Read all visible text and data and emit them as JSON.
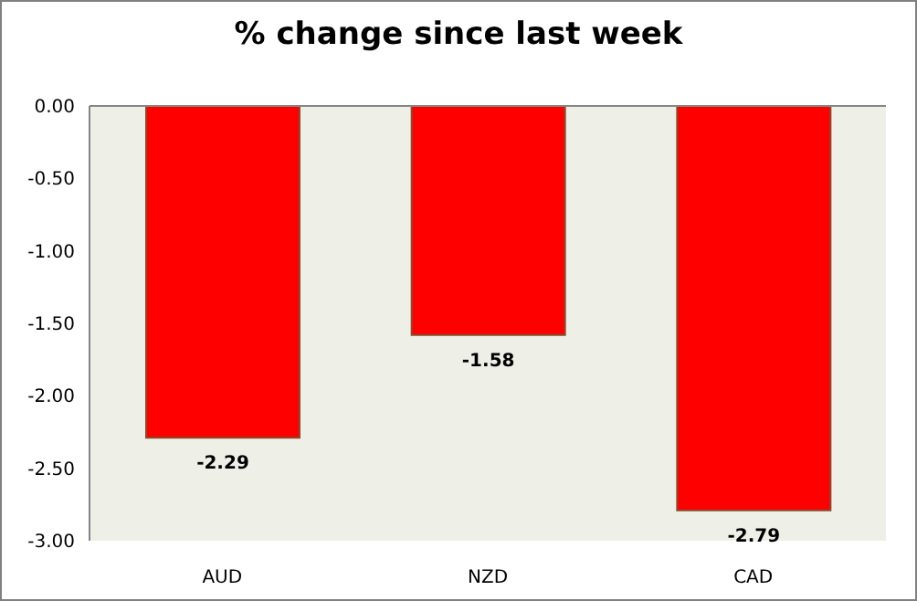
{
  "chart_data": {
    "type": "bar",
    "title": "% change since last week",
    "categories": [
      "AUD",
      "NZD",
      "CAD"
    ],
    "values": [
      -2.29,
      -1.58,
      -2.79
    ],
    "color": "#ff0000",
    "ylim": [
      -3,
      0
    ],
    "yticks": [
      {
        "value": 0,
        "label": "0.00"
      },
      {
        "value": -0.5,
        "label": "-0.50"
      },
      {
        "value": -1,
        "label": "-1.00"
      },
      {
        "value": -1.5,
        "label": "-1.50"
      },
      {
        "value": -2,
        "label": "-2.00"
      },
      {
        "value": -2.5,
        "label": "-2.50"
      },
      {
        "value": -3,
        "label": "-3.00"
      }
    ],
    "data_labels": true
  }
}
